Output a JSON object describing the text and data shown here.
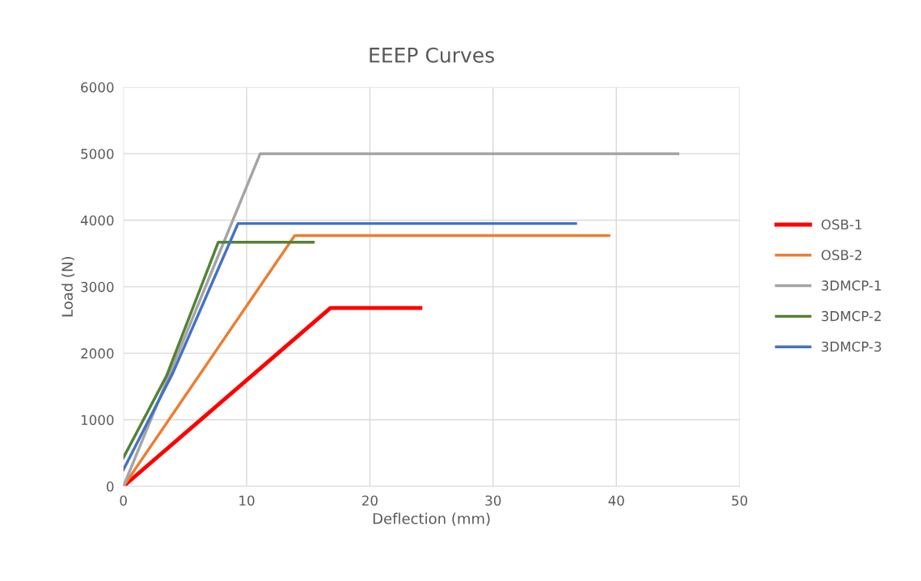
{
  "chart_data": {
    "type": "line",
    "title": "EEEP Curves",
    "xlabel": "Deflection (mm)",
    "ylabel": "Load (N)",
    "xlim": [
      0,
      50
    ],
    "xticks": [
      0,
      10,
      20,
      30,
      40,
      50
    ],
    "ylim": [
      0,
      6000
    ],
    "yticks": [
      0,
      1000,
      2000,
      3000,
      4000,
      5000,
      6000
    ],
    "grid": true,
    "legend": "right",
    "marker": "none",
    "series": [
      {
        "name": "OSB-1",
        "color": "#ff0000",
        "x": [
          0,
          16.8,
          24.1
        ],
        "values": [
          0,
          2680,
          2680
        ]
      },
      {
        "name": "OSB-2",
        "color": "#ed7d31",
        "x": [
          0,
          13.9,
          39.4
        ],
        "values": [
          0,
          3770,
          3770
        ]
      },
      {
        "name": "3DMCP-1",
        "color": "#a5a5a5",
        "x": [
          0,
          11.1,
          45.0
        ],
        "values": [
          0,
          5000,
          5000
        ]
      },
      {
        "name": "3DMCP-2",
        "color": "#548235",
        "x": [
          0,
          3.5,
          7.7,
          15.4
        ],
        "values": [
          430,
          1660,
          3670,
          3670
        ]
      },
      {
        "name": "3DMCP-3",
        "color": "#4472c4",
        "x": [
          0,
          4.0,
          9.3,
          36.7
        ],
        "values": [
          250,
          1700,
          3950,
          3950
        ]
      }
    ]
  }
}
